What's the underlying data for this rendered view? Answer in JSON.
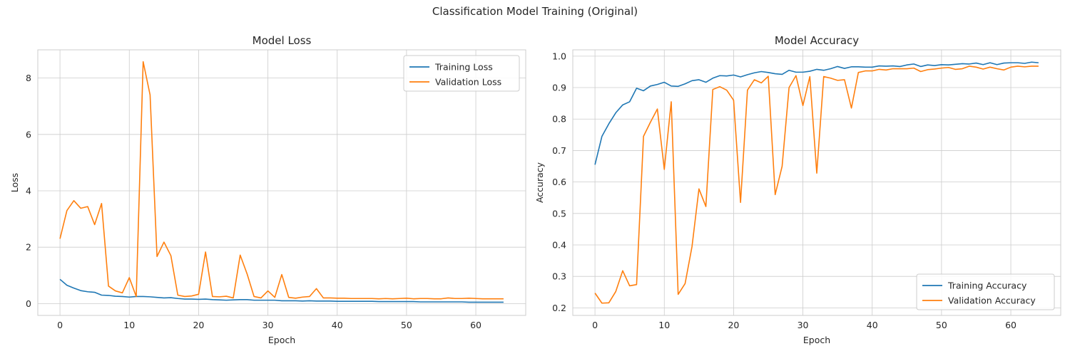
{
  "suptitle": "Classification Model Training (Original)",
  "chart_data": [
    {
      "type": "line",
      "title": "Model Loss",
      "xlabel": "Epoch",
      "ylabel": "Loss",
      "xlim": [
        -3.2,
        67.2
      ],
      "ylim": [
        -0.42,
        9.0
      ],
      "xticks": [
        0,
        10,
        20,
        30,
        40,
        50,
        60
      ],
      "yticks": [
        0,
        2,
        4,
        6,
        8
      ],
      "ytick_decimals": 0,
      "grid": true,
      "legend_position": "upper right",
      "x": [
        0,
        1,
        2,
        3,
        4,
        5,
        6,
        7,
        8,
        9,
        10,
        11,
        12,
        13,
        14,
        15,
        16,
        17,
        18,
        19,
        20,
        21,
        22,
        23,
        24,
        25,
        26,
        27,
        28,
        29,
        30,
        31,
        32,
        33,
        34,
        35,
        36,
        37,
        38,
        39,
        40,
        41,
        42,
        43,
        44,
        45,
        46,
        47,
        48,
        49,
        50,
        51,
        52,
        53,
        54,
        55,
        56,
        57,
        58,
        59,
        60,
        61,
        62,
        63,
        64
      ],
      "series": [
        {
          "name": "Training Loss",
          "color": "#1f77b4",
          "values": [
            0.86,
            0.65,
            0.55,
            0.46,
            0.42,
            0.4,
            0.3,
            0.29,
            0.26,
            0.25,
            0.23,
            0.25,
            0.25,
            0.24,
            0.22,
            0.2,
            0.21,
            0.18,
            0.16,
            0.16,
            0.15,
            0.16,
            0.14,
            0.13,
            0.12,
            0.13,
            0.14,
            0.14,
            0.12,
            0.12,
            0.12,
            0.12,
            0.1,
            0.1,
            0.1,
            0.09,
            0.1,
            0.09,
            0.09,
            0.09,
            0.08,
            0.08,
            0.08,
            0.08,
            0.08,
            0.08,
            0.07,
            0.07,
            0.07,
            0.07,
            0.07,
            0.07,
            0.06,
            0.06,
            0.06,
            0.06,
            0.06,
            0.06,
            0.06,
            0.05,
            0.05,
            0.05,
            0.05,
            0.05,
            0.05
          ]
        },
        {
          "name": "Validation Loss",
          "color": "#ff7f0e",
          "values": [
            2.3,
            3.3,
            3.65,
            3.38,
            3.44,
            2.8,
            3.55,
            0.62,
            0.45,
            0.38,
            0.92,
            0.25,
            8.58,
            7.4,
            1.67,
            2.18,
            1.7,
            0.3,
            0.25,
            0.27,
            0.33,
            1.83,
            0.25,
            0.24,
            0.26,
            0.2,
            1.72,
            1.05,
            0.25,
            0.2,
            0.45,
            0.22,
            1.03,
            0.22,
            0.19,
            0.23,
            0.25,
            0.53,
            0.2,
            0.2,
            0.19,
            0.19,
            0.18,
            0.18,
            0.18,
            0.18,
            0.17,
            0.18,
            0.17,
            0.18,
            0.19,
            0.17,
            0.18,
            0.18,
            0.17,
            0.17,
            0.2,
            0.18,
            0.18,
            0.19,
            0.18,
            0.17,
            0.17,
            0.17,
            0.17
          ]
        }
      ]
    },
    {
      "type": "line",
      "title": "Model Accuracy",
      "xlabel": "Epoch",
      "ylabel": "Accuracy",
      "xlim": [
        -3.2,
        67.2
      ],
      "ylim": [
        0.176,
        1.02
      ],
      "xticks": [
        0,
        10,
        20,
        30,
        40,
        50,
        60
      ],
      "yticks": [
        0.2,
        0.3,
        0.4,
        0.5,
        0.6,
        0.7,
        0.8,
        0.9,
        1.0
      ],
      "ytick_decimals": 1,
      "grid": true,
      "legend_position": "lower right",
      "x": [
        0,
        1,
        2,
        3,
        4,
        5,
        6,
        7,
        8,
        9,
        10,
        11,
        12,
        13,
        14,
        15,
        16,
        17,
        18,
        19,
        20,
        21,
        22,
        23,
        24,
        25,
        26,
        27,
        28,
        29,
        30,
        31,
        32,
        33,
        34,
        35,
        36,
        37,
        38,
        39,
        40,
        41,
        42,
        43,
        44,
        45,
        46,
        47,
        48,
        49,
        50,
        51,
        52,
        53,
        54,
        55,
        56,
        57,
        58,
        59,
        60,
        61,
        62,
        63,
        64
      ],
      "series": [
        {
          "name": "Training Accuracy",
          "color": "#1f77b4",
          "values": [
            0.655,
            0.745,
            0.785,
            0.82,
            0.845,
            0.855,
            0.898,
            0.89,
            0.905,
            0.91,
            0.917,
            0.905,
            0.904,
            0.912,
            0.922,
            0.925,
            0.917,
            0.93,
            0.938,
            0.937,
            0.94,
            0.934,
            0.941,
            0.947,
            0.951,
            0.948,
            0.944,
            0.942,
            0.955,
            0.949,
            0.949,
            0.952,
            0.958,
            0.955,
            0.96,
            0.967,
            0.961,
            0.966,
            0.966,
            0.965,
            0.965,
            0.969,
            0.968,
            0.969,
            0.967,
            0.972,
            0.975,
            0.967,
            0.972,
            0.97,
            0.973,
            0.972,
            0.974,
            0.976,
            0.975,
            0.978,
            0.973,
            0.979,
            0.973,
            0.978,
            0.979,
            0.979,
            0.977,
            0.981,
            0.979
          ]
        },
        {
          "name": "Validation Accuracy",
          "color": "#ff7f0e",
          "values": [
            0.247,
            0.215,
            0.216,
            0.252,
            0.318,
            0.27,
            0.274,
            0.745,
            0.79,
            0.832,
            0.64,
            0.855,
            0.243,
            0.277,
            0.395,
            0.578,
            0.522,
            0.894,
            0.903,
            0.892,
            0.86,
            0.535,
            0.892,
            0.925,
            0.915,
            0.936,
            0.56,
            0.65,
            0.9,
            0.938,
            0.843,
            0.935,
            0.628,
            0.935,
            0.93,
            0.923,
            0.925,
            0.835,
            0.948,
            0.953,
            0.953,
            0.958,
            0.956,
            0.96,
            0.96,
            0.96,
            0.962,
            0.951,
            0.957,
            0.959,
            0.962,
            0.964,
            0.958,
            0.96,
            0.968,
            0.965,
            0.959,
            0.965,
            0.96,
            0.956,
            0.965,
            0.968,
            0.966,
            0.968,
            0.968
          ]
        }
      ]
    }
  ]
}
